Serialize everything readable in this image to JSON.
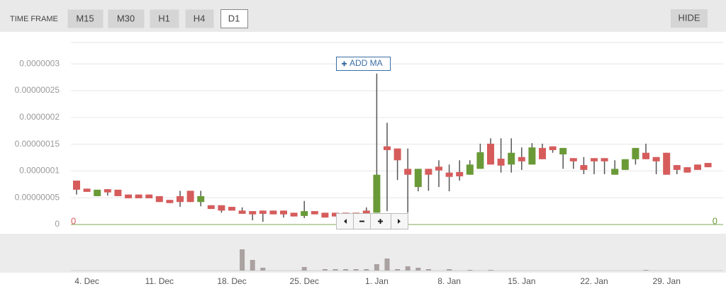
{
  "ui": {
    "timeframe_label": "TIME FRAME",
    "timeframes": [
      "M15",
      "M30",
      "H1",
      "H4",
      "D1"
    ],
    "active": "D1",
    "hide": "HIDE",
    "add_ma": "ADD MA"
  },
  "chart_data": {
    "type": "candlestick",
    "categories": [
      null,
      "4. Dec",
      null,
      null,
      null,
      null,
      null,
      null,
      "11. Dec",
      null,
      null,
      null,
      null,
      null,
      null,
      "18. Dec",
      null,
      null,
      null,
      null,
      null,
      null,
      "25. Dec",
      null,
      null,
      null,
      null,
      null,
      null,
      "1. Jan",
      null,
      null,
      null,
      null,
      null,
      null,
      "8. Jan",
      null,
      null,
      null,
      null,
      null,
      null,
      "15. Jan",
      null,
      null,
      null,
      null,
      null,
      null,
      "22. Jan",
      null,
      null,
      null,
      null,
      null,
      null,
      "29. Jan",
      null,
      null,
      null,
      null
    ],
    "open": [
      8.2e-08,
      6.7e-08,
      5.3e-08,
      6.6e-08,
      6.5e-08,
      5.6e-08,
      5.6e-08,
      5.6e-08,
      5.3e-08,
      4.6e-08,
      5.3e-08,
      6.3e-08,
      4.2e-08,
      3.6e-08,
      3.6e-08,
      3.3e-08,
      2.6e-08,
      2.5e-08,
      2.6e-08,
      2.6e-08,
      2.6e-08,
      2.2e-08,
      1.6e-08,
      2.5e-08,
      2.2e-08,
      2.2e-08,
      2.2e-08,
      2.2e-08,
      2.6e-08,
      2.2e-08,
      1.46e-07,
      1.42e-07,
      1.04e-07,
      7e-08,
      1.04e-07,
      1.08e-07,
      9.7e-08,
      9.8e-08,
      9.3e-08,
      1.04e-07,
      1.51e-07,
      1.23e-07,
      1.12e-07,
      1.26e-07,
      1.12e-07,
      1.43e-07,
      1.46e-07,
      1.31e-07,
      1.24e-07,
      1.11e-07,
      1.24e-07,
      1.24e-07,
      9.3e-08,
      1.02e-07,
      1.22e-07,
      1.34e-07,
      1.26e-07,
      1.34e-07,
      1.11e-07,
      1.07e-07,
      1.12e-07,
      1.15e-07
    ],
    "high": [
      8.2e-08,
      6.7e-08,
      6.5e-08,
      6.6e-08,
      6.5e-08,
      5.6e-08,
      5.6e-08,
      5.6e-08,
      5.3e-08,
      4.6e-08,
      6.3e-08,
      6.3e-08,
      6.3e-08,
      3.6e-08,
      3.6e-08,
      3.3e-08,
      3.2e-08,
      2.5e-08,
      2.6e-08,
      2.6e-08,
      2.6e-08,
      2.2e-08,
      4.4e-08,
      2.5e-08,
      2.2e-08,
      2.2e-08,
      2.2e-08,
      2.2e-08,
      3.2e-08,
      2.82e-07,
      1.9e-07,
      1.42e-07,
      1.42e-07,
      1.04e-07,
      1.04e-07,
      1.2e-07,
      1.12e-07,
      1.2e-07,
      1.2e-07,
      1.51e-07,
      1.61e-07,
      1.61e-07,
      1.61e-07,
      1.44e-07,
      1.52e-07,
      1.51e-07,
      1.46e-07,
      1.43e-07,
      1.24e-07,
      1.26e-07,
      1.24e-07,
      1.24e-07,
      1.2e-07,
      1.22e-07,
      1.43e-07,
      1.51e-07,
      1.26e-07,
      1.34e-07,
      1.11e-07,
      1.07e-07,
      1.12e-07,
      1.15e-07
    ],
    "low": [
      5.6e-08,
      6.1e-08,
      5.3e-08,
      5.4e-08,
      5.3e-08,
      4.9e-08,
      4.9e-08,
      4.9e-08,
      4.2e-08,
      4e-08,
      3.3e-08,
      4.2e-08,
      3.4e-08,
      2.9e-08,
      2.2e-08,
      2.6e-08,
      2e-08,
      8e-09,
      5e-09,
      1.9e-08,
      1.3e-08,
      1.5e-08,
      1.2e-08,
      1.9e-08,
      1.3e-08,
      1.5e-08,
      7e-09,
      1.5e-08,
      2e-08,
      2.2e-08,
      2.5e-08,
      8.3e-08,
      2.2e-08,
      6.2e-08,
      6.3e-08,
      7e-08,
      6.2e-08,
      8.2e-08,
      9.3e-08,
      1.04e-07,
      1.12e-07,
      9.7e-08,
      9.7e-08,
      1.02e-07,
      1.12e-07,
      1.22e-07,
      1.34e-07,
      1.04e-07,
      1.04e-07,
      9.4e-08,
      9.4e-08,
      9.4e-08,
      9.3e-08,
      1.02e-07,
      1.12e-07,
      1.22e-07,
      9.4e-08,
      9.3e-08,
      9.4e-08,
      9.7e-08,
      1.02e-07,
      1.07e-07
    ],
    "close": [
      6.5e-08,
      6.1e-08,
      6.5e-08,
      6e-08,
      5.3e-08,
      4.9e-08,
      4.9e-08,
      4.9e-08,
      4.2e-08,
      4e-08,
      4.2e-08,
      4.2e-08,
      5.3e-08,
      2.9e-08,
      2.6e-08,
      2.6e-08,
      2e-08,
      1.9e-08,
      2e-08,
      1.9e-08,
      1.9e-08,
      1.5e-08,
      2.5e-08,
      1.9e-08,
      1.3e-08,
      1.5e-08,
      1.5e-08,
      1.5e-08,
      2e-08,
      9.3e-08,
      1.39e-07,
      1.2e-07,
      9.3e-08,
      1.04e-07,
      9.3e-08,
      1.01e-07,
      8.9e-08,
      9e-08,
      1.12e-07,
      1.35e-07,
      1.12e-07,
      1.1e-07,
      1.34e-07,
      1.18e-07,
      1.44e-07,
      1.22e-07,
      1.39e-07,
      1.43e-07,
      1.18e-07,
      1.02e-07,
      1.18e-07,
      1.18e-07,
      1.04e-07,
      1.22e-07,
      1.43e-07,
      1.22e-07,
      1.18e-07,
      9.3e-08,
      1.02e-07,
      9.7e-08,
      1.02e-07,
      1.07e-07
    ],
    "volume": [
      0,
      0,
      0,
      0,
      0,
      0,
      0,
      0,
      0,
      0,
      0,
      0,
      0,
      0,
      0,
      0,
      30,
      15,
      4,
      0,
      0,
      0,
      5,
      0,
      2,
      2,
      2,
      2,
      2,
      9,
      17,
      2,
      6,
      4,
      2,
      0,
      2,
      0,
      1,
      0,
      1,
      0,
      0,
      0,
      0,
      0,
      0,
      0,
      0,
      0,
      0,
      0,
      0,
      0,
      0,
      1,
      0,
      0,
      0,
      0,
      0,
      0
    ],
    "up_color": "#6a9a37",
    "down_color": "#d65c5c",
    "wick_color": "#555555",
    "volume_color": "#aaa1a1",
    "ylim": [
      0,
      3.4e-07
    ],
    "yticks": [
      0,
      {
        "value": 5e-08,
        "label": "0.00000005"
      },
      {
        "value": 1e-07,
        "label": "0.0000001"
      },
      {
        "value": 1.5e-07,
        "label": "0.00000015"
      },
      {
        "value": 2e-07,
        "label": "0.0000002"
      },
      {
        "value": 2.5e-07,
        "label": "0.00000025"
      },
      {
        "value": 3e-07,
        "label": "0.0000003"
      }
    ],
    "grid": true,
    "price_labels": [
      "0",
      "0"
    ]
  }
}
